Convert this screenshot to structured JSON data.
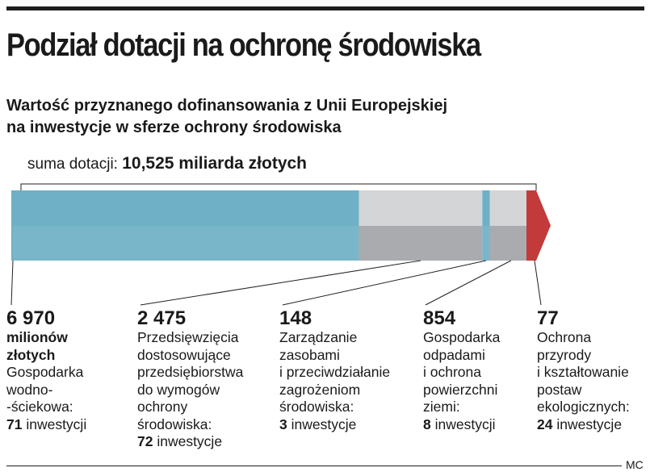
{
  "title": "Podział dotacji na ochronę środowiska",
  "subtitle_line1": "Wartość przyznanego dofinansowania z Unii Europejskiej",
  "subtitle_line2": "na inwestycje w sferze ochrony środowiska",
  "sum_label": "suma dotacji:",
  "sum_value": "10,525 miliarda złotych",
  "credit": "MC",
  "colors": {
    "blue": "#6fb0c6",
    "gray_top": "#d3d5d7",
    "gray_front": "#a9abae",
    "red": "#c23a3a"
  },
  "chart_data": {
    "type": "bar",
    "orientation": "horizontal-stacked",
    "total": "10,525 miliarda złotych",
    "unit": "milionów złotych",
    "series": [
      {
        "value": 6970,
        "value_label": "6 970",
        "category": "Gospodarka wodno-ściekowa",
        "count": 71,
        "color": "blue"
      },
      {
        "value": 2475,
        "value_label": "2 475",
        "category": "Przedsięwzięcia dostosowujące przedsiębiorstwa do wymogów ochrony środowiska",
        "count": 72,
        "color": "gray"
      },
      {
        "value": 148,
        "value_label": "148",
        "category": "Zarządzanie zasobami i przeciwdziałanie zagrożeniom środowiska",
        "count": 3,
        "color": "blue"
      },
      {
        "value": 854,
        "value_label": "854",
        "category": "Gospodarka odpadami i ochrona powierzchni ziemi",
        "count": 8,
        "color": "gray"
      },
      {
        "value": 77,
        "value_label": "77",
        "category": "Ochrona przyrody i kształtowanie postaw ekologicznych",
        "count": 24,
        "color": "red"
      }
    ]
  },
  "columns": [
    {
      "num": "6 970",
      "unit": "milionów\nzłotych",
      "desc": "Gospodarka\nwodno-\n-ściekowa:",
      "count": "71",
      "count_word": " inwestycji"
    },
    {
      "num": "2 475",
      "desc": "Przedsięwzięcia\ndostosowujące\nprzedsiębiorstwa\ndo wymogów\nochrony\nśrodowiska:",
      "count": "72",
      "count_word": " inwestycje"
    },
    {
      "num": "148",
      "desc": "Zarządzanie\nzasobami\ni przeciwdziałanie\nzagrożeniom\nśrodowiska:",
      "count": "3",
      "count_word": " inwestycje"
    },
    {
      "num": "854",
      "desc": "Gospodarka\nodpadami\ni ochrona\npowierzchni\nziemi:",
      "count": "8",
      "count_word": " inwestycji"
    },
    {
      "num": "77",
      "desc": "Ochrona\nprzyrody\ni kształtowanie\npostaw\nekologicznych:",
      "count": "24",
      "count_word": " inwestycje"
    }
  ]
}
